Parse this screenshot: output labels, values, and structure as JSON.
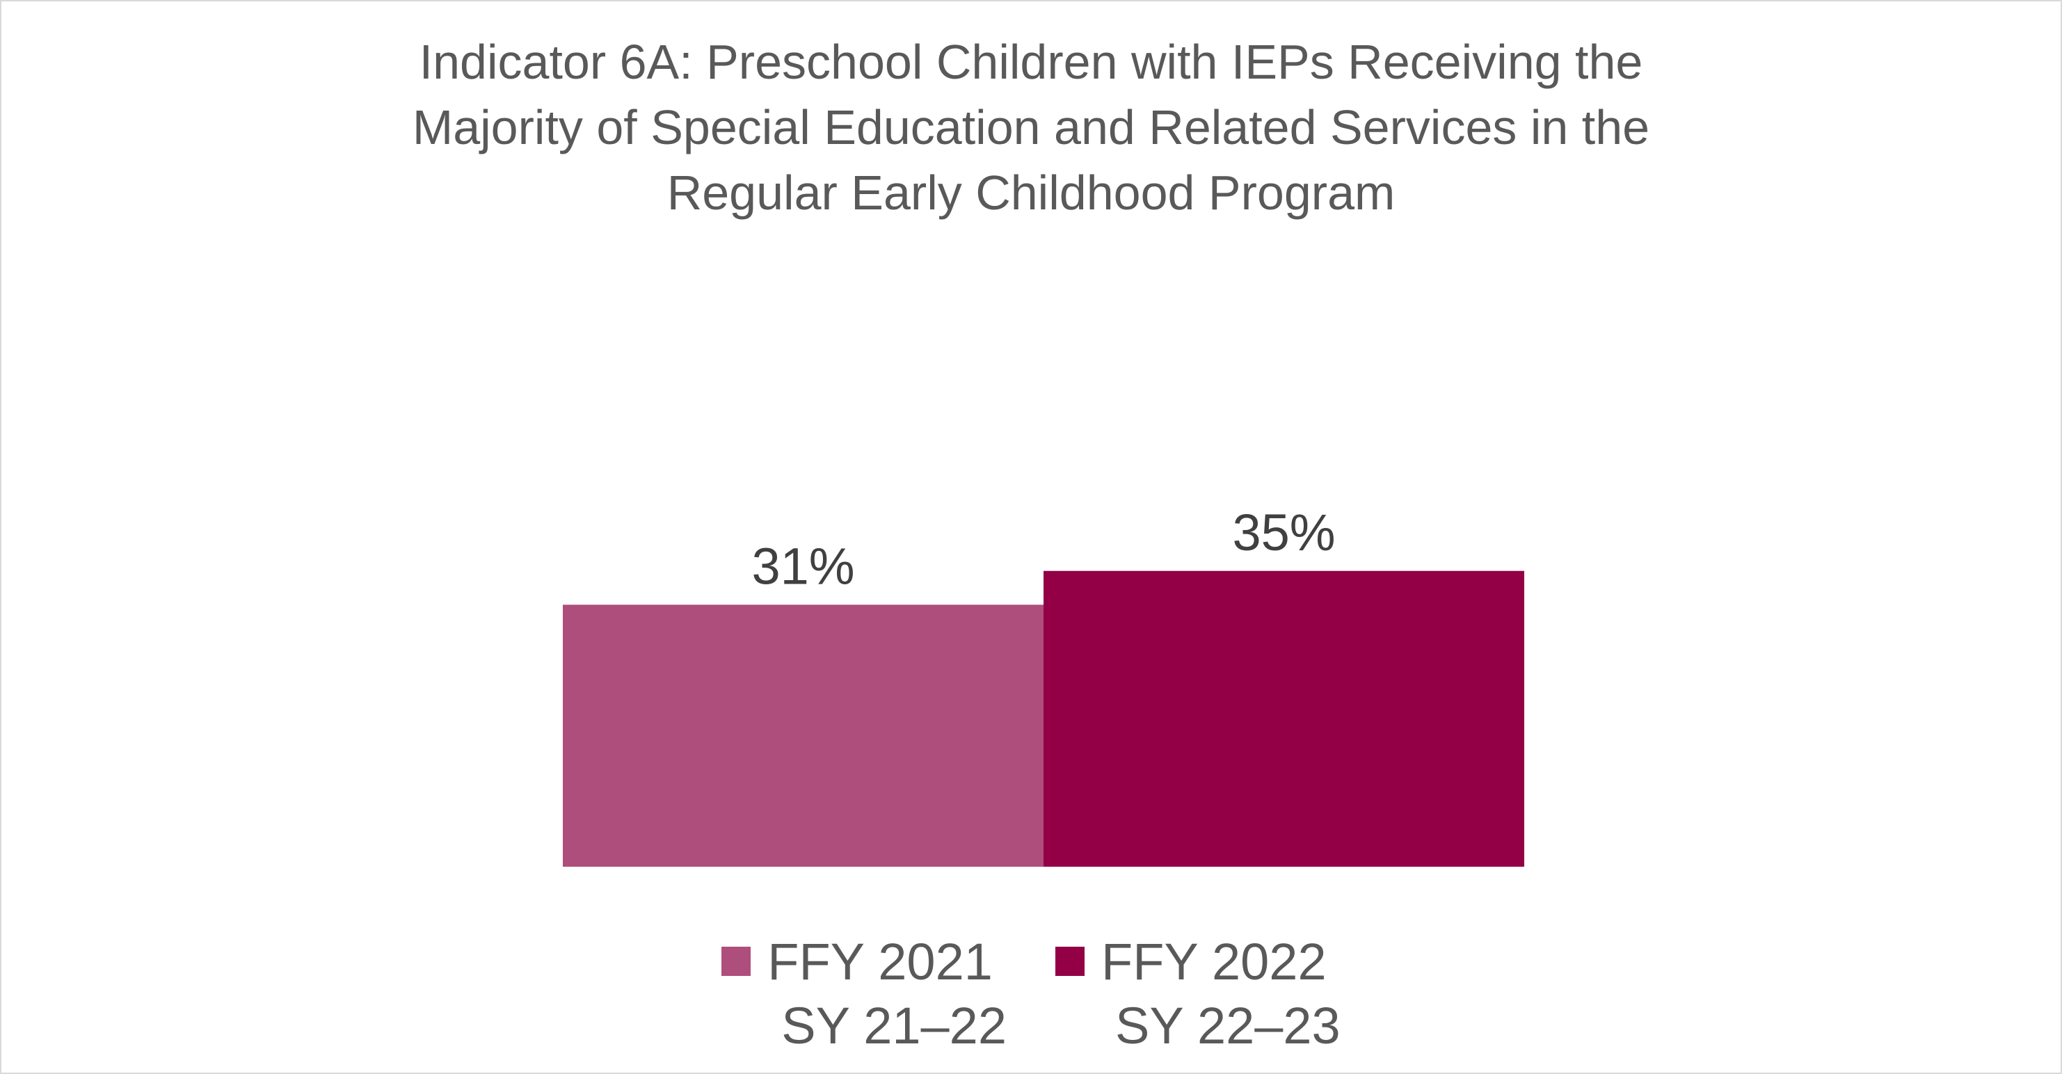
{
  "chart_data": {
    "type": "bar",
    "title_lines": [
      "Indicator 6A: Preschool Children with IEPs Receiving the",
      "Majority of Special Education and Related Services in the",
      "Regular Early Childhood Program"
    ],
    "series": [
      {
        "name_lines": [
          "FFY 2021",
          "SY 21–22"
        ],
        "value": 31,
        "label": "31%",
        "color": "#ae4e7c"
      },
      {
        "name_lines": [
          "FFY 2022",
          "SY 22–23"
        ],
        "value": 35,
        "label": "35%",
        "color": "#930045"
      }
    ],
    "ylim": [
      0,
      100
    ],
    "grid": false,
    "legend_position": "bottom"
  }
}
